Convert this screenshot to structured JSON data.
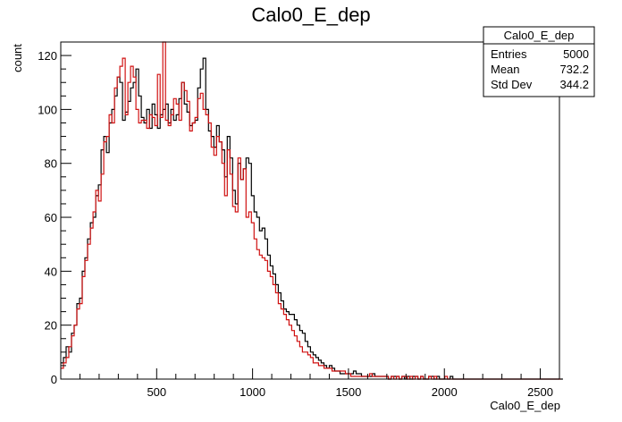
{
  "chart_data": {
    "type": "histogram",
    "title": "Calo0_E_dep",
    "xlabel": "Calo0_E_dep",
    "ylabel": "count",
    "xlim": [
      0,
      2600
    ],
    "ylim": [
      0,
      125
    ],
    "bin_width": 14,
    "x_ticks": [
      500,
      1000,
      1500,
      2000,
      2500
    ],
    "y_ticks": [
      0,
      20,
      40,
      60,
      80,
      100,
      120
    ],
    "grid": false,
    "series": [
      {
        "color": "#000000",
        "values": [
          6,
          8,
          12,
          10,
          17,
          20,
          28,
          30,
          40,
          45,
          52,
          58,
          60,
          68,
          72,
          85,
          90,
          84,
          95,
          100,
          105,
          112,
          110,
          96,
          99,
          103,
          108,
          110,
          115,
          105,
          97,
          95,
          100,
          93,
          102,
          98,
          93,
          98,
          100,
          102,
          95,
          100,
          96,
          98,
          104,
          110,
          102,
          99,
          94,
          95,
          96,
          108,
          115,
          119,
          100,
          92,
          90,
          86,
          94,
          88,
          85,
          75,
          90,
          82,
          70,
          65,
          80,
          74,
          78,
          82,
          80,
          68,
          62,
          60,
          55,
          56,
          52,
          46,
          42,
          39,
          35,
          32,
          29,
          26,
          25,
          24,
          24,
          22,
          20,
          18,
          17,
          14,
          12,
          10,
          9,
          8,
          7,
          6,
          5,
          4,
          5,
          4,
          3,
          3,
          2,
          2,
          2,
          2,
          2,
          3,
          2,
          2,
          1,
          1,
          1,
          1,
          2,
          1,
          1,
          1,
          1,
          1,
          0,
          1,
          1,
          1,
          0,
          1,
          0,
          1,
          0,
          1,
          1,
          0,
          1,
          0,
          0,
          1,
          1,
          0,
          1,
          0,
          0,
          0,
          0,
          1,
          0,
          0,
          0,
          0,
          0,
          0,
          0,
          0,
          0,
          0,
          0,
          0,
          0,
          0,
          0,
          0,
          0,
          0,
          0,
          0,
          0,
          0,
          0,
          0,
          0,
          0,
          0,
          0,
          0,
          0,
          0,
          0,
          0,
          0,
          0,
          0,
          0,
          0,
          0,
          0,
          0,
          0
        ]
      },
      {
        "color": "#d01010",
        "values": [
          4,
          6,
          8,
          12,
          16,
          20,
          26,
          28,
          38,
          44,
          50,
          56,
          62,
          70,
          66,
          76,
          88,
          90,
          98,
          95,
          108,
          112,
          116,
          119,
          98,
          110,
          116,
          112,
          100,
          95,
          96,
          96,
          93,
          98,
          97,
          94,
          113,
          97,
          126,
          96,
          94,
          98,
          104,
          102,
          96,
          110,
          107,
          103,
          92,
          95,
          97,
          104,
          106,
          100,
          98,
          95,
          86,
          83,
          90,
          88,
          80,
          68,
          85,
          76,
          64,
          62,
          82,
          74,
          78,
          60,
          62,
          58,
          52,
          48,
          46,
          45,
          44,
          40,
          38,
          35,
          32,
          28,
          26,
          24,
          22,
          20,
          18,
          16,
          14,
          12,
          10,
          10,
          9,
          8,
          6,
          6,
          5,
          5,
          4,
          4,
          4,
          3,
          3,
          3,
          3,
          3,
          2,
          2,
          1,
          1,
          1,
          1,
          1,
          1,
          1,
          2,
          1,
          1,
          1,
          1,
          1,
          1,
          0,
          1,
          0,
          1,
          0,
          1,
          1,
          0,
          1,
          0,
          1,
          0,
          1,
          0,
          0,
          1,
          0,
          1,
          0,
          0,
          0,
          1,
          0,
          0,
          0,
          0,
          0,
          0,
          0,
          0,
          0,
          0,
          0,
          0,
          0,
          0,
          0,
          0,
          0,
          0,
          0,
          0,
          0,
          0,
          0,
          0,
          0,
          0,
          0,
          0,
          0,
          0,
          0,
          0,
          0,
          0,
          0,
          0,
          0,
          0,
          0,
          0,
          0,
          0,
          0
        ]
      }
    ],
    "stats_box": {
      "title": "Calo0_E_dep",
      "rows": [
        {
          "label": "Entries",
          "value": "5000"
        },
        {
          "label": "Mean",
          "value": "732.2"
        },
        {
          "label": "Std Dev",
          "value": "344.2"
        }
      ]
    }
  }
}
